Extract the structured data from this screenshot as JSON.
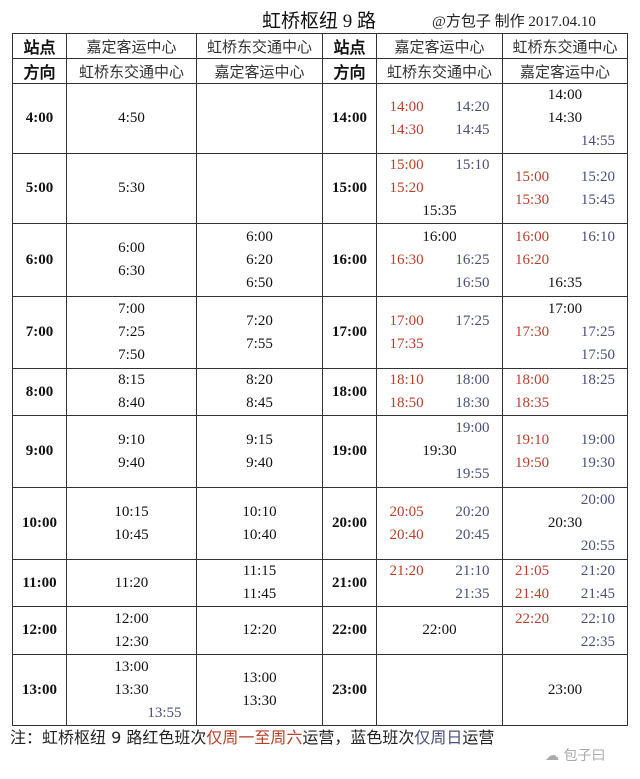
{
  "title": "虹桥枢纽 9 路",
  "credit": "@方包子 制作 2017.04.10",
  "header": {
    "station_label": "站点",
    "direction_label": "方向",
    "col1_station": "嘉定客运中心",
    "col1_direction": "虹桥东交通中心",
    "col2_station": "虹桥东交通中心",
    "col2_direction": "嘉定客运中心"
  },
  "colors": {
    "red": "#b5412c",
    "blue": "#4c4f78",
    "black": "#111111"
  },
  "left_rows": [
    {
      "hour": "4:00",
      "a": [
        [
          {
            "t": "4:50",
            "c": "k"
          }
        ]
      ],
      "b": []
    },
    {
      "hour": "5:00",
      "a": [
        [
          {
            "t": "5:30",
            "c": "k"
          }
        ]
      ],
      "b": []
    },
    {
      "hour": "6:00",
      "a": [
        [
          {
            "t": "6:00",
            "c": "k"
          }
        ],
        [
          {
            "t": "6:30",
            "c": "k"
          }
        ]
      ],
      "b": [
        [
          {
            "t": "6:00",
            "c": "k"
          }
        ],
        [
          {
            "t": "6:20",
            "c": "k"
          }
        ],
        [
          {
            "t": "6:50",
            "c": "k"
          }
        ]
      ]
    },
    {
      "hour": "7:00",
      "a": [
        [
          {
            "t": "7:00",
            "c": "k"
          }
        ],
        [
          {
            "t": "7:25",
            "c": "k"
          }
        ],
        [
          {
            "t": "7:50",
            "c": "k"
          }
        ]
      ],
      "b": [
        [
          {
            "t": "7:20",
            "c": "k"
          }
        ],
        [
          {
            "t": "7:55",
            "c": "k"
          }
        ]
      ]
    },
    {
      "hour": "8:00",
      "a": [
        [
          {
            "t": "8:15",
            "c": "k"
          }
        ],
        [
          {
            "t": "8:40",
            "c": "k"
          }
        ]
      ],
      "b": [
        [
          {
            "t": "8:20",
            "c": "k"
          }
        ],
        [
          {
            "t": "8:45",
            "c": "k"
          }
        ]
      ]
    },
    {
      "hour": "9:00",
      "a": [
        [
          {
            "t": "9:10",
            "c": "k"
          }
        ],
        [
          {
            "t": "9:40",
            "c": "k"
          }
        ]
      ],
      "b": [
        [
          {
            "t": "9:15",
            "c": "k"
          }
        ],
        [
          {
            "t": "9:40",
            "c": "k"
          }
        ]
      ]
    },
    {
      "hour": "10:00",
      "a": [
        [
          {
            "t": "10:15",
            "c": "k"
          }
        ],
        [
          {
            "t": "10:45",
            "c": "k"
          }
        ]
      ],
      "b": [
        [
          {
            "t": "10:10",
            "c": "k"
          }
        ],
        [
          {
            "t": "10:40",
            "c": "k"
          }
        ]
      ]
    },
    {
      "hour": "11:00",
      "a": [
        [
          {
            "t": "11:20",
            "c": "k"
          }
        ]
      ],
      "b": [
        [
          {
            "t": "11:15",
            "c": "k"
          }
        ],
        [
          {
            "t": "11:45",
            "c": "k"
          }
        ]
      ]
    },
    {
      "hour": "12:00",
      "a": [
        [
          {
            "t": "12:00",
            "c": "k"
          }
        ],
        [
          {
            "t": "12:30",
            "c": "k"
          }
        ]
      ],
      "b": [
        [
          {
            "t": "12:20",
            "c": "k"
          }
        ]
      ]
    },
    {
      "hour": "13:00",
      "a": [
        [
          {
            "t": "13:00",
            "c": "k"
          }
        ],
        [
          {
            "t": "13:30",
            "c": "k"
          }
        ],
        [
          {
            "t": "13:55",
            "c": "b"
          }
        ]
      ],
      "b": [
        [
          {
            "t": "13:00",
            "c": "k"
          }
        ],
        [
          {
            "t": "13:30",
            "c": "k"
          }
        ]
      ]
    }
  ],
  "right_rows": [
    {
      "hour": "14:00",
      "a": [
        [
          {
            "t": "14:00",
            "c": "r"
          },
          {
            "t": "14:20",
            "c": "b"
          }
        ],
        [
          {
            "t": "14:30",
            "c": "r"
          },
          {
            "t": "14:45",
            "c": "b"
          }
        ]
      ],
      "b": [
        [
          {
            "t": "14:00",
            "c": "k"
          }
        ],
        [
          {
            "t": "14:30",
            "c": "k"
          }
        ],
        [
          {
            "t": "14:55",
            "c": "b"
          }
        ]
      ]
    },
    {
      "hour": "15:00",
      "a": [
        [
          {
            "t": "15:00",
            "c": "r"
          },
          {
            "t": "15:10",
            "c": "b"
          }
        ],
        [
          {
            "t": "15:20",
            "c": "r"
          }
        ],
        [
          {
            "t": "15:35",
            "c": "k"
          }
        ]
      ],
      "b": [
        [
          {
            "t": "15:00",
            "c": "r"
          },
          {
            "t": "15:20",
            "c": "b"
          }
        ],
        [
          {
            "t": "15:30",
            "c": "r"
          },
          {
            "t": "15:45",
            "c": "b"
          }
        ]
      ]
    },
    {
      "hour": "16:00",
      "a": [
        [
          {
            "t": "16:00",
            "c": "k"
          }
        ],
        [
          {
            "t": "16:30",
            "c": "r"
          },
          {
            "t": "16:25",
            "c": "b"
          }
        ],
        [
          {
            "t": "16:50",
            "c": "b"
          }
        ]
      ],
      "b": [
        [
          {
            "t": "16:00",
            "c": "r"
          },
          {
            "t": "16:10",
            "c": "b"
          }
        ],
        [
          {
            "t": "16:20",
            "c": "r"
          }
        ],
        [
          {
            "t": "16:35",
            "c": "k"
          }
        ]
      ]
    },
    {
      "hour": "17:00",
      "a": [
        [
          {
            "t": "17:00",
            "c": "r"
          },
          {
            "t": "17:25",
            "c": "b"
          }
        ],
        [
          {
            "t": "17:35",
            "c": "r"
          }
        ]
      ],
      "b": [
        [
          {
            "t": "17:00",
            "c": "k"
          }
        ],
        [
          {
            "t": "17:30",
            "c": "r"
          },
          {
            "t": "17:25",
            "c": "b"
          }
        ],
        [
          {
            "t": "17:50",
            "c": "b"
          }
        ]
      ]
    },
    {
      "hour": "18:00",
      "a": [
        [
          {
            "t": "18:10",
            "c": "r"
          },
          {
            "t": "18:00",
            "c": "b"
          }
        ],
        [
          {
            "t": "18:50",
            "c": "r"
          },
          {
            "t": "18:30",
            "c": "b"
          }
        ]
      ],
      "b": [
        [
          {
            "t": "18:00",
            "c": "r"
          },
          {
            "t": "18:25",
            "c": "b"
          }
        ],
        [
          {
            "t": "18:35",
            "c": "r"
          }
        ]
      ]
    },
    {
      "hour": "19:00",
      "a": [
        [
          {
            "t": "19:00",
            "c": "b"
          }
        ],
        [
          {
            "t": "19:30",
            "c": "k"
          }
        ],
        [
          {
            "t": "19:55",
            "c": "b"
          }
        ]
      ],
      "b": [
        [
          {
            "t": "19:10",
            "c": "r"
          },
          {
            "t": "19:00",
            "c": "b"
          }
        ],
        [
          {
            "t": "19:50",
            "c": "r"
          },
          {
            "t": "19:30",
            "c": "b"
          }
        ]
      ]
    },
    {
      "hour": "20:00",
      "a": [
        [
          {
            "t": "20:05",
            "c": "r"
          },
          {
            "t": "20:20",
            "c": "b"
          }
        ],
        [
          {
            "t": "20:40",
            "c": "r"
          },
          {
            "t": "20:45",
            "c": "b"
          }
        ]
      ],
      "b": [
        [
          {
            "t": "20:00",
            "c": "b"
          }
        ],
        [
          {
            "t": "20:30",
            "c": "k"
          }
        ],
        [
          {
            "t": "20:55",
            "c": "b"
          }
        ]
      ]
    },
    {
      "hour": "21:00",
      "a": [
        [
          {
            "t": "21:20",
            "c": "r"
          },
          {
            "t": "21:10",
            "c": "b"
          }
        ],
        [
          {
            "t": "21:35",
            "c": "b"
          }
        ]
      ],
      "b": [
        [
          {
            "t": "21:05",
            "c": "r"
          },
          {
            "t": "21:20",
            "c": "b"
          }
        ],
        [
          {
            "t": "21:40",
            "c": "r"
          },
          {
            "t": "21:45",
            "c": "b"
          }
        ]
      ]
    },
    {
      "hour": "22:00",
      "a": [
        [
          {
            "t": "22:00",
            "c": "k"
          }
        ]
      ],
      "b": [
        [
          {
            "t": "22:20",
            "c": "r"
          },
          {
            "t": "22:10",
            "c": "b"
          }
        ],
        [
          {
            "t": "22:35",
            "c": "b"
          }
        ]
      ]
    },
    {
      "hour": "23:00",
      "a": [],
      "b": [
        [
          {
            "t": "23:00",
            "c": "k"
          }
        ]
      ]
    }
  ],
  "note": {
    "prefix": "注：虹桥枢纽 9 路红色班次",
    "red_part": "仅周一至周六",
    "middle": "运营，蓝色班次",
    "blue_part": "仅周日",
    "suffix": "运营"
  },
  "watermark": "包子曰"
}
